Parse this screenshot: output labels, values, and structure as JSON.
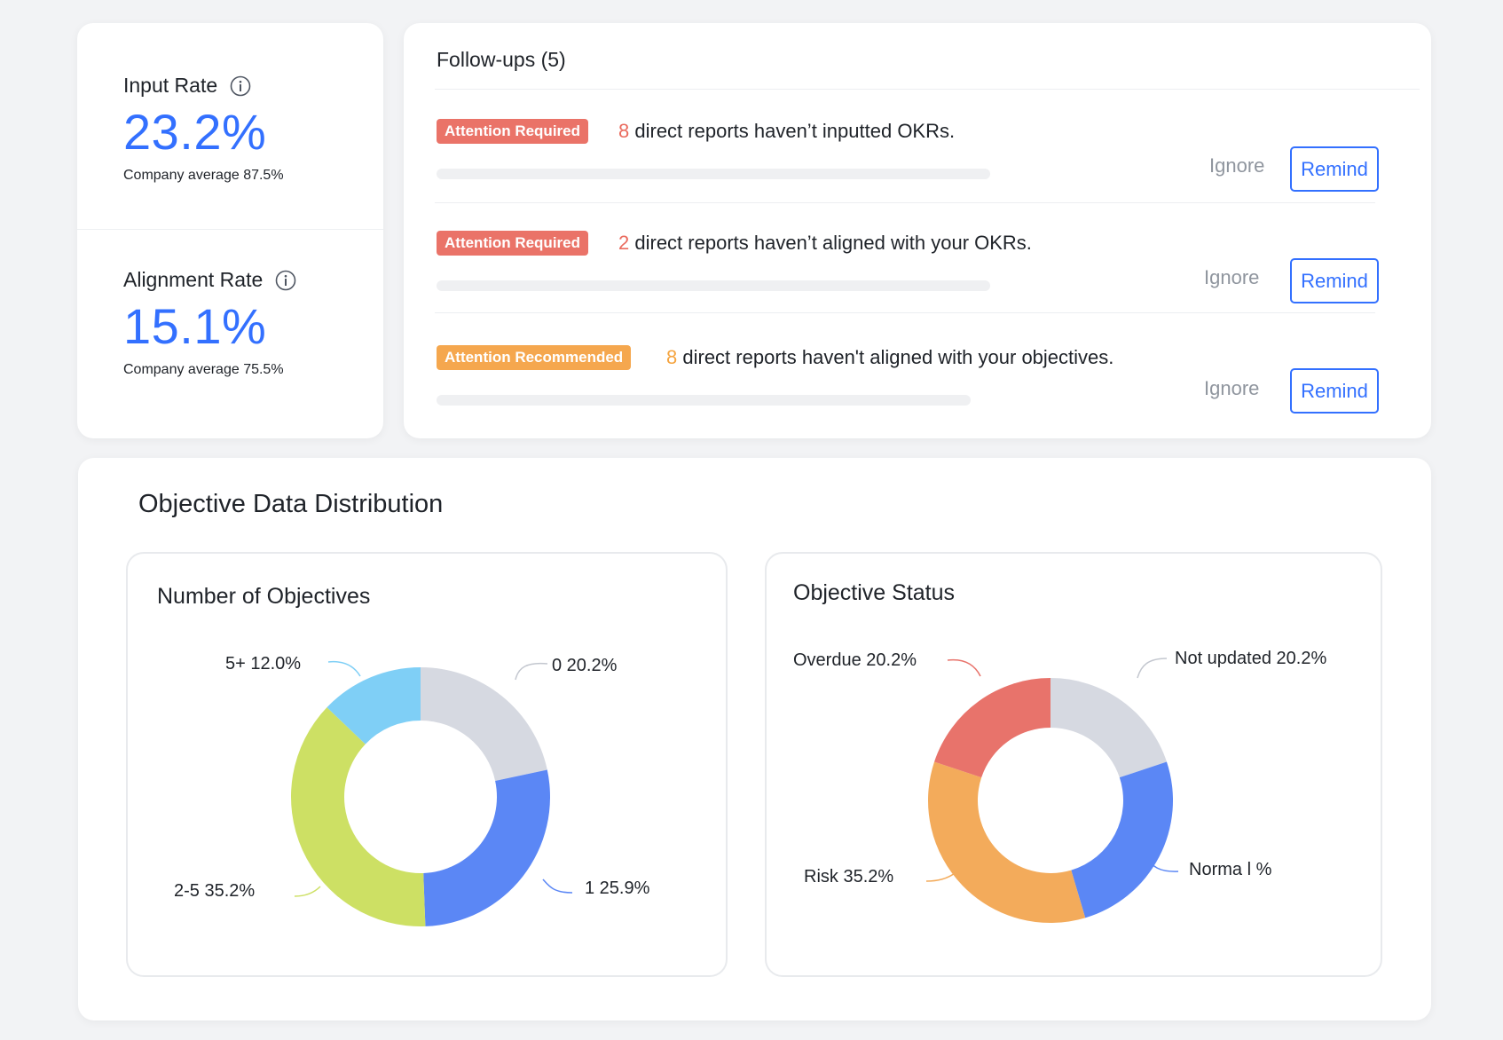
{
  "stats": {
    "input_rate": {
      "label": "Input Rate",
      "value": "23.2%",
      "sub": "Company average 87.5%"
    },
    "alignment_rate": {
      "label": "Alignment Rate",
      "value": "15.1%",
      "sub": "Company average 75.5%"
    }
  },
  "followups": {
    "title": "Follow-ups (5)",
    "ignore_label": "Ignore",
    "remind_label": "Remind",
    "items": [
      {
        "tag": "Attention Required",
        "count": "8",
        "text": "direct reports haven’t inputted OKRs.",
        "severity": "required"
      },
      {
        "tag": "Attention Required",
        "count": "2",
        "text": "direct reports haven’t aligned with your OKRs.",
        "severity": "required"
      },
      {
        "tag": "Attention Recommended",
        "count": "8",
        "text": "direct reports haven't aligned with your objectives.",
        "severity": "recommended"
      }
    ]
  },
  "distribution": {
    "title": "Objective Data Distribution"
  },
  "colors": {
    "accent": "#3370ff",
    "tag_required": "#ea7368",
    "tag_recommended": "#f5a74e"
  },
  "chart_data": [
    {
      "type": "pie",
      "title": "Number of Objectives",
      "slices": [
        {
          "label": "0",
          "value": 20.2,
          "display": "0  20.2%",
          "color": "#d6d9e1"
        },
        {
          "label": "1",
          "value": 25.9,
          "display": "1  25.9%",
          "color": "#5b87f5"
        },
        {
          "label": "2-5",
          "value": 35.2,
          "display": "2-5 35.2%",
          "color": "#cde064"
        },
        {
          "label": "5+",
          "value": 12.0,
          "display": "5+ 12.0%",
          "color": "#7fcff6"
        }
      ],
      "legend": "none"
    },
    {
      "type": "pie",
      "title": "Objective Status",
      "slices": [
        {
          "label": "Not updated",
          "value": 20.2,
          "display": "Not updated  20.2%",
          "color": "#d6d9e1"
        },
        {
          "label": "Norma l",
          "value": 25.9,
          "display": "Norma l %",
          "color": "#5b87f5"
        },
        {
          "label": "Risk",
          "value": 35.2,
          "display": "Risk 35.2%",
          "color": "#f3ab5b"
        },
        {
          "label": "Overdue",
          "value": 20.2,
          "display": "Overdue 20.2%",
          "color": "#e8736b"
        }
      ],
      "legend": "none"
    }
  ]
}
